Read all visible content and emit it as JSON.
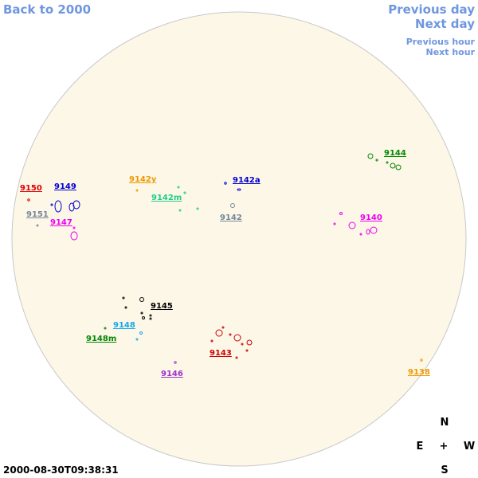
{
  "nav": {
    "back": "Back to 2000",
    "previous_day": "Previous day",
    "next_day": "Next day",
    "previous_hour": "Previous hour",
    "next_hour": "Next hour"
  },
  "timestamp": "2000-08-30T09:38:31",
  "compass": {
    "north": "N",
    "east": "E",
    "center": "+",
    "west": "W",
    "south": "S"
  },
  "regions": [
    {
      "label": "9150",
      "color": "#dd0000"
    },
    {
      "label": "9149",
      "color": "#0000cc"
    },
    {
      "label": "9151",
      "color": "#778899"
    },
    {
      "label": "9147",
      "color": "#ee00ee"
    },
    {
      "label": "9142y",
      "color": "#ee9900"
    },
    {
      "label": "9142m",
      "color": "#22cc88"
    },
    {
      "label": "9142a",
      "color": "#0000cc"
    },
    {
      "label": "9142",
      "color": "#778899"
    },
    {
      "label": "9144",
      "color": "#008800"
    },
    {
      "label": "9140",
      "color": "#ee00ee"
    },
    {
      "label": "9145",
      "color": "#000000"
    },
    {
      "label": "9148",
      "color": "#11aaee"
    },
    {
      "label": "9148m",
      "color": "#008800"
    },
    {
      "label": "9143",
      "color": "#cc0000"
    },
    {
      "label": "9146",
      "color": "#9933cc"
    },
    {
      "label": "9138",
      "color": "#ee9900"
    }
  ]
}
